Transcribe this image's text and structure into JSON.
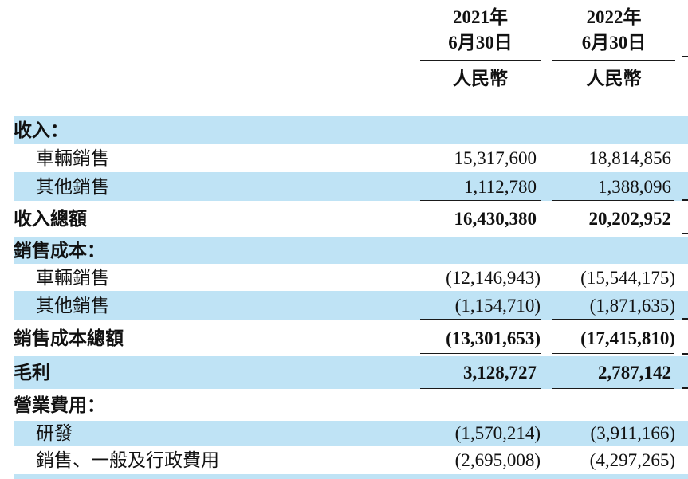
{
  "colors": {
    "stripe": "#bfe3f5",
    "text": "#111111",
    "rule": "#1a1a1a"
  },
  "header": {
    "columns": [
      {
        "year": "2021年",
        "date": "6月30日",
        "currency": "人民幣"
      },
      {
        "year": "2022年",
        "date": "6月30日",
        "currency": "人民幣"
      }
    ]
  },
  "table": {
    "rows": [
      {
        "label": "收入：",
        "indent": false,
        "bold": true,
        "v2021": "",
        "v2022": "",
        "rule": "none"
      },
      {
        "label": "車輛銷售",
        "indent": true,
        "bold": false,
        "v2021": "15,317,600",
        "v2022": "18,814,856",
        "rule": "none"
      },
      {
        "label": "其他銷售",
        "indent": true,
        "bold": false,
        "v2021": "1,112,780",
        "v2022": "1,388,096",
        "rule": "bottom"
      },
      {
        "label": "收入總額",
        "indent": false,
        "bold": true,
        "v2021": "16,430,380",
        "v2022": "20,202,952",
        "rule": "raised"
      },
      {
        "label": "銷售成本：",
        "indent": false,
        "bold": true,
        "v2021": "",
        "v2022": "",
        "rule": "none"
      },
      {
        "label": "車輛銷售",
        "indent": true,
        "bold": false,
        "v2021": "(12,146,943)",
        "v2022": "(15,544,175)",
        "rule": "none"
      },
      {
        "label": "其他銷售",
        "indent": true,
        "bold": false,
        "v2021": "(1,154,710)",
        "v2022": "(1,871,635)",
        "rule": "bottom"
      },
      {
        "label": "銷售成本總額",
        "indent": false,
        "bold": true,
        "v2021": "(13,301,653)",
        "v2022": "(17,415,810)",
        "rule": "raised"
      },
      {
        "label": "毛利",
        "indent": false,
        "bold": true,
        "v2021": "3,128,727",
        "v2022": "2,787,142",
        "rule": "bottom"
      },
      {
        "label": "營業費用：",
        "indent": false,
        "bold": true,
        "v2021": "",
        "v2022": "",
        "rule": "none"
      },
      {
        "label": "研發",
        "indent": true,
        "bold": false,
        "v2021": "(1,570,214)",
        "v2022": "(3,911,166)",
        "rule": "none"
      },
      {
        "label": "銷售、一般及行政費用",
        "indent": true,
        "bold": false,
        "v2021": "(2,695,008)",
        "v2022": "(4,297,265)",
        "rule": "none"
      },
      {
        "label": "",
        "indent": false,
        "bold": false,
        "v2021": "",
        "v2022": "",
        "rule": "none"
      }
    ]
  }
}
